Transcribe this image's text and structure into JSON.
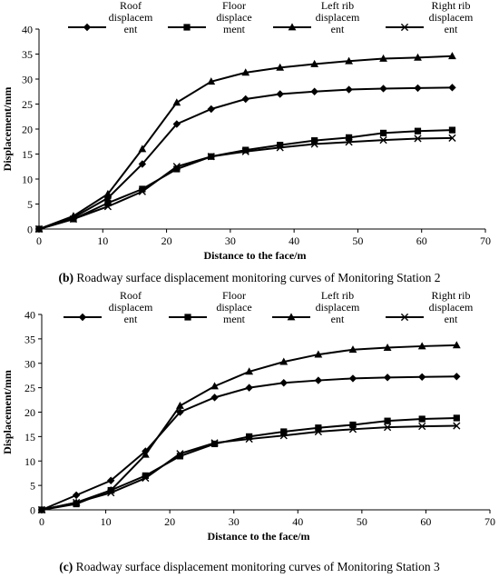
{
  "chart_data": [
    {
      "type": "line",
      "caption_letter": "(b)",
      "caption_text": "Roadway surface displacement monitoring curves of Monitoring Station 2",
      "xlabel": "Distance to the face/m",
      "ylabel": "Displacement/mm",
      "xlim": [
        0,
        70
      ],
      "ylim": [
        0,
        40
      ],
      "xticks": [
        0,
        10,
        20,
        30,
        40,
        50,
        60,
        70
      ],
      "yticks": [
        0,
        5,
        10,
        15,
        20,
        25,
        30,
        35,
        40
      ],
      "grid": false,
      "legend_position": "top",
      "x": [
        0,
        5.4,
        10.8,
        16.2,
        21.6,
        27,
        32.4,
        37.8,
        43.2,
        48.6,
        54,
        59.4,
        64.8
      ],
      "series": [
        {
          "name": "Roof displacem ent",
          "legend_lines": [
            "Roof",
            "displacem",
            "ent"
          ],
          "marker": "diamond",
          "values": [
            0,
            2.3,
            6.2,
            13.0,
            21.0,
            24.0,
            26.0,
            27.0,
            27.5,
            27.9,
            28.1,
            28.2,
            28.3
          ]
        },
        {
          "name": "Floor displace ment",
          "legend_lines": [
            "Floor",
            "displace",
            "ment"
          ],
          "marker": "square",
          "values": [
            0,
            2.0,
            5.2,
            8.0,
            12.0,
            14.5,
            15.8,
            16.8,
            17.7,
            18.3,
            19.2,
            19.6,
            19.8
          ]
        },
        {
          "name": "Left rib displacem ent",
          "legend_lines": [
            "Left rib",
            "displacem",
            "ent"
          ],
          "marker": "triangle",
          "values": [
            0,
            2.6,
            7.0,
            16.0,
            25.3,
            29.5,
            31.3,
            32.3,
            33.0,
            33.6,
            34.1,
            34.3,
            34.6
          ]
        },
        {
          "name": "Right rib displacem ent",
          "legend_lines": [
            "Right rib",
            "displacem",
            "ent"
          ],
          "marker": "x",
          "values": [
            0,
            2.0,
            4.5,
            7.5,
            12.5,
            14.5,
            15.5,
            16.3,
            17.0,
            17.4,
            17.8,
            18.1,
            18.2
          ]
        }
      ]
    },
    {
      "type": "line",
      "caption_letter": "(c)",
      "caption_text": "Roadway surface displacement monitoring curves of Monitoring Station 3",
      "xlabel": "Distance to the face/m",
      "ylabel": "Displacement/mm",
      "xlim": [
        0,
        70
      ],
      "ylim": [
        0,
        40
      ],
      "xticks": [
        0,
        10,
        20,
        30,
        40,
        50,
        60,
        70
      ],
      "yticks": [
        0,
        5,
        10,
        15,
        20,
        25,
        30,
        35,
        40
      ],
      "grid": false,
      "legend_position": "top",
      "x": [
        0,
        5.4,
        10.8,
        16.2,
        21.6,
        27,
        32.4,
        37.8,
        43.2,
        48.6,
        54,
        59.4,
        64.8
      ],
      "series": [
        {
          "name": "Roof displacem ent",
          "legend_lines": [
            "Roof",
            "displacem",
            "ent"
          ],
          "marker": "diamond",
          "values": [
            0,
            3.0,
            6.0,
            12.0,
            20.0,
            23.0,
            25.0,
            26.0,
            26.5,
            26.9,
            27.1,
            27.2,
            27.3
          ]
        },
        {
          "name": "Floor displace ment",
          "legend_lines": [
            "Floor",
            "displace",
            "ment"
          ],
          "marker": "square",
          "values": [
            0,
            1.2,
            4.0,
            7.0,
            11.0,
            13.5,
            15.0,
            16.0,
            16.8,
            17.4,
            18.2,
            18.6,
            18.8
          ]
        },
        {
          "name": "Left rib displacem ent",
          "legend_lines": [
            "Left rib",
            "displacem",
            "ent"
          ],
          "marker": "triangle",
          "values": [
            0,
            1.5,
            4.0,
            11.3,
            21.3,
            25.3,
            28.3,
            30.3,
            31.8,
            32.8,
            33.2,
            33.5,
            33.7
          ]
        },
        {
          "name": "Right rib displacem ent",
          "legend_lines": [
            "Right rib",
            "displacem",
            "ent"
          ],
          "marker": "x",
          "values": [
            0,
            1.5,
            3.5,
            6.5,
            11.5,
            13.7,
            14.5,
            15.2,
            16.0,
            16.5,
            16.9,
            17.1,
            17.2
          ]
        }
      ]
    }
  ]
}
